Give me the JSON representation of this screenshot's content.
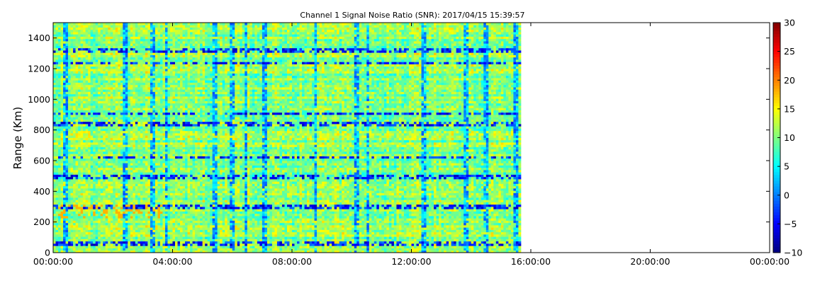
{
  "chart_data": {
    "type": "heatmap",
    "title": "Channel 1 Signal Noise Ratio (SNR): 2017/04/15 15:39:57",
    "xlabel": "",
    "ylabel": "Range (Km)",
    "x_ticks": [
      "00:00:00",
      "04:00:00",
      "08:00:00",
      "12:00:00",
      "16:00:00",
      "20:00:00",
      "00:00:00"
    ],
    "xlim_hours": [
      0,
      24
    ],
    "data_end_hours": 15.63,
    "y_ticks": [
      0,
      200,
      400,
      600,
      800,
      1000,
      1200,
      1400
    ],
    "ylim": [
      0,
      1500
    ],
    "range_step_km": 15,
    "time_step_minutes": 5,
    "colorbar": {
      "colormap": "jet",
      "vmin": -10,
      "vmax": 30,
      "ticks": [
        30,
        25,
        20,
        15,
        10,
        5,
        0,
        -5,
        -10
      ],
      "tick_labels": [
        "30",
        "25",
        "20",
        "15",
        "10",
        "5",
        "0",
        "−5",
        "−10"
      ]
    },
    "typical_snr_db": [
      7,
      14
    ],
    "low_snr_time_columns_hours": [
      0.35,
      2.35,
      3.3,
      3.75,
      5.35,
      5.95,
      6.4,
      7.05,
      8.75,
      10.1,
      10.5,
      12.35,
      13.8,
      14.45,
      15.45
    ],
    "low_snr_range_rows_km": [
      830,
      1310,
      1230,
      900,
      615,
      490,
      290,
      50
    ],
    "high_snr_patch": {
      "hours": [
        0.1,
        3.6
      ],
      "range_km": [
        225,
        300
      ],
      "snr_db": 18
    },
    "grid": false
  }
}
